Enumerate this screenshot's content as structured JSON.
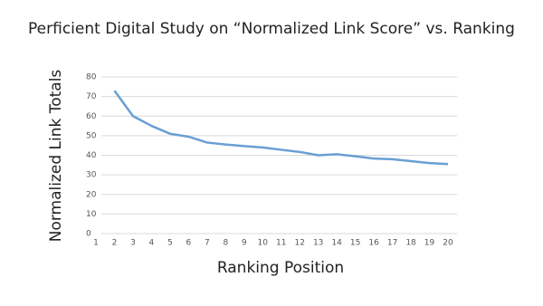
{
  "chart_data": {
    "type": "line",
    "title": "Perficient Digital Study on “Normalized Link Score” vs. Ranking",
    "x_label": "Ranking Position",
    "y_label": "Normalized Link Totals",
    "x": [
      2,
      3,
      4,
      5,
      6,
      7,
      8,
      9,
      10,
      11,
      12,
      13,
      14,
      15,
      16,
      17,
      18,
      19,
      20
    ],
    "series": [
      {
        "color": "#6a9fd4",
        "values": [
          73,
          60,
          55,
          51,
          49.5,
          46.5,
          45.5,
          44.7,
          44,
          42.8,
          41.7,
          40,
          40.5,
          39.5,
          38.3,
          38,
          37,
          36,
          35.5
        ]
      }
    ],
    "xlim": [
      1,
      20
    ],
    "xticks": [
      1,
      2,
      3,
      4,
      5,
      6,
      7,
      8,
      9,
      10,
      11,
      12,
      13,
      14,
      15,
      16,
      17,
      18,
      19,
      20
    ],
    "ylim": [
      0,
      80
    ],
    "yticks": [
      0,
      10,
      20,
      30,
      40,
      50,
      60,
      70,
      80
    ],
    "grid": true
  }
}
